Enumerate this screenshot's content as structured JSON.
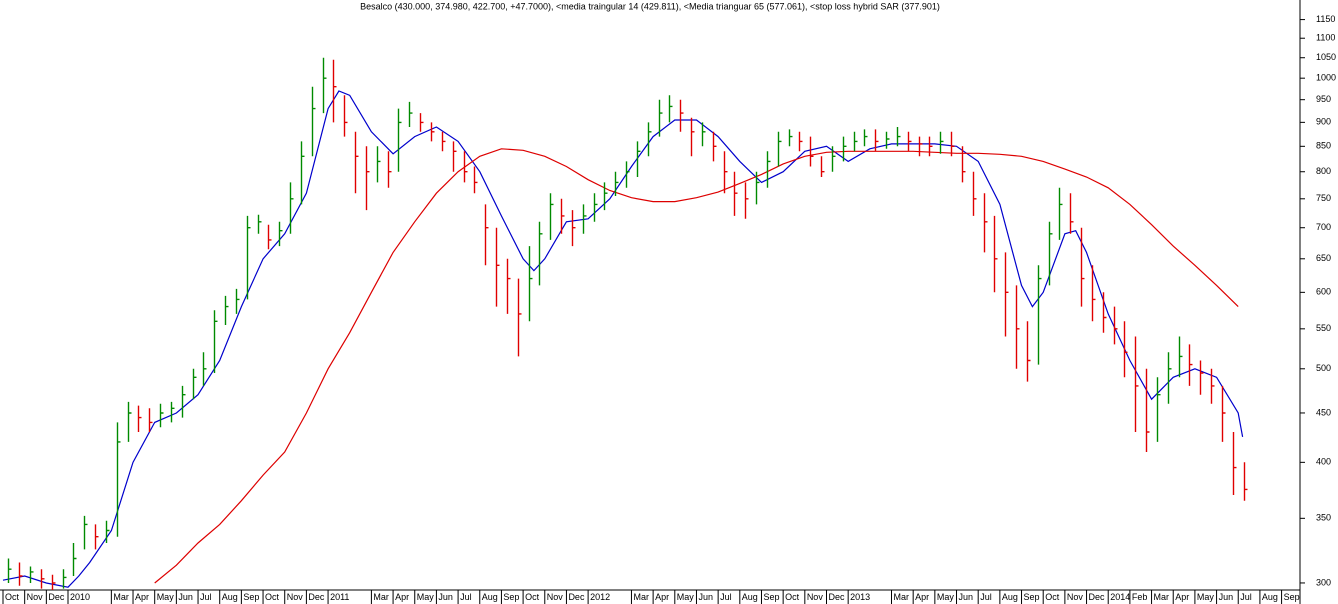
{
  "chart_data": {
    "type": "ohlc",
    "title": "Besalco (430.000, 374.980, 422.700, +47.7000), <media traingular 14 (429.811), <Media trianguar  65 (577.061), <stop loss hybrid SAR (377.901)",
    "x": [
      0.25,
      0.75,
      1.25,
      1.75,
      2.25,
      2.75,
      3.25,
      3.75,
      4.25,
      4.75,
      5.25,
      5.75,
      6.25,
      6.75,
      7.25,
      7.75,
      8.25,
      8.75,
      9.25,
      9.75,
      10.25,
      10.75,
      11.25,
      11.75,
      12.25,
      12.75,
      13.25,
      13.75,
      14.25,
      14.75,
      15.25,
      15.75,
      16.25,
      16.75,
      17.25,
      17.75,
      18.25,
      18.75,
      19.25,
      19.75,
      20.25,
      20.75,
      21.25,
      21.75,
      22.25,
      22.75,
      23.25,
      23.75,
      24.25,
      24.75,
      25.25,
      25.75,
      26.25,
      26.75,
      27.25,
      27.75,
      28.25,
      28.75,
      29.25,
      29.75,
      30.25,
      30.75,
      31.25,
      31.75,
      32.25,
      32.75,
      33.25,
      33.75,
      34.25,
      34.75,
      35.25,
      35.75,
      36.25,
      36.75,
      37.25,
      37.75,
      38.25,
      38.75,
      39.25,
      39.75,
      40.25,
      40.75,
      41.25,
      41.75,
      42.25,
      42.75,
      43.25,
      43.75,
      44.25,
      44.75,
      45.25,
      45.75,
      46.25,
      46.75,
      47.25,
      47.75,
      48.25,
      48.75,
      49.25,
      49.75,
      50.25,
      50.75,
      51.25,
      51.75,
      52.25,
      52.75,
      53.25,
      53.75,
      54.25,
      54.75,
      55.25,
      55.75,
      56.25,
      56.75,
      57.25
    ],
    "high": [
      318,
      315,
      312,
      310,
      306,
      310,
      330,
      352,
      345,
      348,
      440,
      462,
      458,
      455,
      460,
      462,
      480,
      500,
      520,
      575,
      595,
      605,
      720,
      722,
      705,
      710,
      780,
      860,
      980,
      1050,
      1045,
      960,
      880,
      850,
      850,
      840,
      930,
      945,
      920,
      900,
      880,
      860,
      840,
      810,
      740,
      700,
      650,
      620,
      670,
      710,
      760,
      750,
      730,
      740,
      760,
      780,
      800,
      820,
      860,
      900,
      950,
      960,
      950,
      910,
      900,
      880,
      840,
      800,
      780,
      800,
      840,
      880,
      885,
      880,
      870,
      830,
      850,
      870,
      880,
      885,
      885,
      880,
      890,
      880,
      870,
      870,
      880,
      880,
      850,
      800,
      760,
      720,
      660,
      610,
      560,
      640,
      710,
      770,
      760,
      700,
      640,
      600,
      580,
      560,
      540,
      500,
      490,
      520,
      540,
      530,
      510,
      500,
      480,
      430,
      400
    ],
    "low": [
      300,
      298,
      300,
      296,
      294,
      296,
      305,
      325,
      325,
      330,
      335,
      420,
      430,
      430,
      435,
      440,
      445,
      465,
      480,
      495,
      555,
      570,
      590,
      690,
      665,
      670,
      690,
      740,
      830,
      920,
      900,
      870,
      760,
      730,
      780,
      770,
      800,
      890,
      880,
      860,
      840,
      800,
      780,
      760,
      640,
      580,
      570,
      515,
      560,
      610,
      680,
      690,
      670,
      690,
      710,
      730,
      755,
      770,
      790,
      830,
      870,
      900,
      880,
      830,
      850,
      820,
      760,
      720,
      715,
      740,
      770,
      810,
      850,
      840,
      810,
      790,
      800,
      820,
      840,
      850,
      840,
      845,
      850,
      840,
      830,
      830,
      835,
      830,
      780,
      720,
      660,
      600,
      540,
      500,
      485,
      505,
      610,
      680,
      690,
      580,
      560,
      545,
      530,
      490,
      430,
      410,
      420,
      460,
      490,
      480,
      470,
      460,
      420,
      370,
      365
    ],
    "close": [
      310,
      305,
      308,
      303,
      300,
      304,
      318,
      345,
      335,
      340,
      420,
      450,
      445,
      440,
      450,
      455,
      470,
      490,
      500,
      560,
      580,
      590,
      700,
      710,
      680,
      695,
      750,
      830,
      930,
      1000,
      980,
      900,
      830,
      800,
      820,
      800,
      900,
      920,
      900,
      880,
      860,
      840,
      800,
      780,
      700,
      640,
      620,
      570,
      620,
      690,
      740,
      720,
      700,
      720,
      740,
      760,
      780,
      800,
      840,
      880,
      920,
      935,
      920,
      880,
      880,
      850,
      800,
      760,
      750,
      780,
      820,
      860,
      870,
      860,
      830,
      800,
      830,
      850,
      860,
      870,
      860,
      865,
      870,
      860,
      855,
      850,
      860,
      850,
      800,
      750,
      710,
      650,
      600,
      550,
      510,
      620,
      690,
      740,
      710,
      620,
      590,
      565,
      550,
      520,
      480,
      430,
      470,
      500,
      515,
      505,
      495,
      480,
      450,
      395,
      375
    ],
    "up_color": "#008a00",
    "down_color": "#e00000",
    "lines": [
      {
        "color": "#0000cc",
        "x": [
          0,
          1,
          2,
          3,
          3.5,
          4,
          5,
          6,
          7,
          8,
          9,
          10,
          11,
          12,
          13,
          14,
          15,
          15.5,
          16,
          17,
          18,
          19,
          20,
          21,
          22,
          23,
          24,
          24.5,
          25,
          26,
          27,
          28,
          29,
          30,
          31,
          32,
          33,
          34,
          35,
          36,
          37,
          38,
          39,
          40,
          41,
          42,
          43,
          44,
          45,
          46,
          47,
          47.5,
          48,
          49,
          49.5,
          50,
          51,
          52,
          53,
          54,
          55,
          56,
          57,
          57.2
        ],
        "values": [
          302,
          305,
          300,
          297,
          305,
          315,
          340,
          400,
          440,
          450,
          470,
          510,
          580,
          650,
          690,
          760,
          930,
          970,
          960,
          880,
          835,
          870,
          890,
          860,
          800,
          720,
          650,
          632,
          650,
          710,
          715,
          750,
          810,
          870,
          905,
          905,
          870,
          820,
          780,
          800,
          840,
          850,
          820,
          845,
          855,
          855,
          855,
          850,
          820,
          740,
          610,
          580,
          600,
          690,
          695,
          660,
          570,
          510,
          465,
          490,
          500,
          490,
          450,
          425
        ]
      },
      {
        "color": "#dd0000",
        "x": [
          7,
          8,
          9,
          10,
          11,
          12,
          13,
          14,
          15,
          16,
          17,
          18,
          19,
          20,
          21,
          22,
          23,
          24,
          25,
          26,
          27,
          28,
          29,
          30,
          31,
          32,
          33,
          34,
          35,
          36,
          37,
          38,
          39,
          40,
          41,
          42,
          43,
          44,
          45,
          46,
          47,
          48,
          49,
          50,
          51,
          52,
          53,
          54,
          55,
          56,
          57
        ],
        "values": [
          300,
          313,
          330,
          345,
          365,
          388,
          410,
          450,
          500,
          545,
          600,
          660,
          710,
          760,
          800,
          830,
          845,
          842,
          830,
          810,
          785,
          765,
          752,
          745,
          745,
          752,
          762,
          778,
          795,
          815,
          830,
          838,
          840,
          840,
          840,
          840,
          838,
          836,
          836,
          834,
          830,
          820,
          805,
          790,
          770,
          740,
          705,
          670,
          640,
          610,
          580
        ]
      }
    ],
    "xlim": [
      0,
      59.85
    ],
    "ylim": [
      295,
      1205
    ],
    "log_y": true,
    "yticks": [
      300,
      350,
      400,
      450,
      500,
      550,
      600,
      650,
      700,
      750,
      800,
      850,
      900,
      950,
      1000,
      1050,
      1100,
      1150
    ],
    "xticks": [
      {
        "value": 0,
        "label": "Oct"
      },
      {
        "value": 1,
        "label": "Nov"
      },
      {
        "value": 2,
        "label": "Dec"
      },
      {
        "value": 3,
        "label": "2010"
      },
      {
        "value": 5,
        "label": "Mar"
      },
      {
        "value": 6,
        "label": "Apr"
      },
      {
        "value": 7,
        "label": "May"
      },
      {
        "value": 8,
        "label": "Jun"
      },
      {
        "value": 9,
        "label": "Jul"
      },
      {
        "value": 10,
        "label": "Aug"
      },
      {
        "value": 11,
        "label": "Sep"
      },
      {
        "value": 12,
        "label": "Oct"
      },
      {
        "value": 13,
        "label": "Nov"
      },
      {
        "value": 14,
        "label": "Dec"
      },
      {
        "value": 15,
        "label": "2011"
      },
      {
        "value": 17,
        "label": "Mar"
      },
      {
        "value": 18,
        "label": "Apr"
      },
      {
        "value": 19,
        "label": "May"
      },
      {
        "value": 20,
        "label": "Jun"
      },
      {
        "value": 21,
        "label": "Jul"
      },
      {
        "value": 22,
        "label": "Aug"
      },
      {
        "value": 23,
        "label": "Sep"
      },
      {
        "value": 24,
        "label": "Oct"
      },
      {
        "value": 25,
        "label": "Nov"
      },
      {
        "value": 26,
        "label": "Dec"
      },
      {
        "value": 27,
        "label": "2012"
      },
      {
        "value": 29,
        "label": "Mar"
      },
      {
        "value": 30,
        "label": "Apr"
      },
      {
        "value": 31,
        "label": "May"
      },
      {
        "value": 32,
        "label": "Jun"
      },
      {
        "value": 33,
        "label": "Jul"
      },
      {
        "value": 34,
        "label": "Aug"
      },
      {
        "value": 35,
        "label": "Sep"
      },
      {
        "value": 36,
        "label": "Oct"
      },
      {
        "value": 37,
        "label": "Nov"
      },
      {
        "value": 38,
        "label": "Dec"
      },
      {
        "value": 39,
        "label": "2013"
      },
      {
        "value": 41,
        "label": "Mar"
      },
      {
        "value": 42,
        "label": "Apr"
      },
      {
        "value": 43,
        "label": "May"
      },
      {
        "value": 44,
        "label": "Jun"
      },
      {
        "value": 45,
        "label": "Jul"
      },
      {
        "value": 46,
        "label": "Aug"
      },
      {
        "value": 47,
        "label": "Sep"
      },
      {
        "value": 48,
        "label": "Oct"
      },
      {
        "value": 49,
        "label": "Nov"
      },
      {
        "value": 50,
        "label": "Dec"
      },
      {
        "value": 51,
        "label": "2014"
      },
      {
        "value": 52,
        "label": "Feb"
      },
      {
        "value": 53,
        "label": "Mar"
      },
      {
        "value": 54,
        "label": "Apr"
      },
      {
        "value": 55,
        "label": "May"
      },
      {
        "value": 56,
        "label": "Jun"
      },
      {
        "value": 57,
        "label": "Jul"
      },
      {
        "value": 58,
        "label": "Aug"
      },
      {
        "value": 59,
        "label": "Sep"
      }
    ]
  }
}
